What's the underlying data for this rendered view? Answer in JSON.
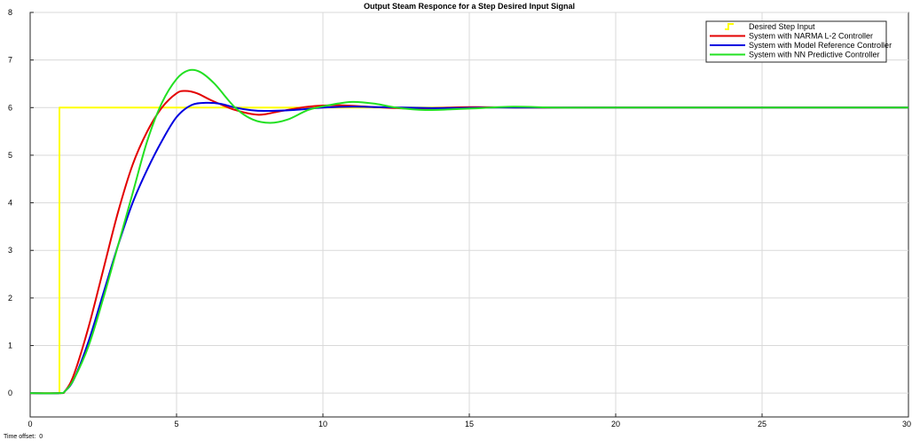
{
  "chart_data": {
    "type": "line",
    "title": "Output Steam Responce for a Step Desired Input Signal",
    "xlabel": "",
    "ylabel": "",
    "xlim": [
      0,
      30
    ],
    "ylim": [
      -0.5,
      8
    ],
    "xticks": [
      0,
      5,
      10,
      15,
      20,
      25,
      30
    ],
    "yticks": [
      0,
      1,
      2,
      3,
      4,
      5,
      6,
      7,
      8
    ],
    "grid": true,
    "legend_position": "top-right",
    "series": [
      {
        "name": "Desired Step Input",
        "color": "#ffff00",
        "x": [
          0,
          1,
          1,
          30
        ],
        "y": [
          0,
          0,
          6,
          6
        ]
      },
      {
        "name": "System with NARMA L-2 Controller",
        "color": "#e30000",
        "x": [
          0,
          1,
          1.2,
          1.5,
          2,
          2.5,
          3,
          3.5,
          4,
          4.5,
          5,
          5.3,
          5.7,
          6.2,
          7,
          7.8,
          8.5,
          9.5,
          10.5,
          11.5,
          13,
          15,
          17,
          20,
          30
        ],
        "y": [
          0,
          0,
          0.05,
          0.4,
          1.4,
          2.6,
          3.8,
          4.8,
          5.5,
          6.0,
          6.3,
          6.35,
          6.3,
          6.15,
          5.95,
          5.85,
          5.92,
          6.02,
          6.05,
          6.02,
          5.98,
          6.01,
          6.0,
          6.0,
          6.0
        ]
      },
      {
        "name": "System with Model Reference Controller",
        "color": "#0000e0",
        "x": [
          0,
          1,
          1.2,
          1.5,
          2,
          2.5,
          3,
          3.5,
          4,
          4.5,
          5,
          5.5,
          6,
          6.5,
          7,
          7.5,
          8,
          9,
          10,
          11,
          12,
          14,
          16,
          20,
          30
        ],
        "y": [
          0,
          0,
          0.05,
          0.3,
          1.1,
          2.1,
          3.1,
          4.0,
          4.7,
          5.3,
          5.8,
          6.05,
          6.1,
          6.08,
          6.0,
          5.95,
          5.93,
          5.95,
          6.0,
          6.02,
          6.01,
          5.99,
          6.0,
          6.0,
          6.0
        ]
      },
      {
        "name": "System with NN Predictive Controller",
        "color": "#22e022",
        "x": [
          0,
          1,
          1.2,
          1.5,
          2,
          2.5,
          3,
          3.5,
          4,
          4.5,
          5,
          5.4,
          5.8,
          6.3,
          7,
          7.6,
          8.2,
          8.8,
          9.5,
          10.2,
          11,
          11.8,
          12.5,
          13.5,
          15,
          16.5,
          18,
          20,
          30
        ],
        "y": [
          0,
          0,
          0.05,
          0.3,
          1.0,
          2.0,
          3.1,
          4.2,
          5.3,
          6.1,
          6.6,
          6.78,
          6.75,
          6.5,
          6.0,
          5.75,
          5.68,
          5.75,
          5.95,
          6.05,
          6.12,
          6.08,
          6.0,
          5.95,
          5.98,
          6.02,
          6.0,
          6.0,
          6.0
        ]
      }
    ]
  },
  "footer": {
    "time_offset_label": "Time offset:",
    "time_offset_value": "0"
  }
}
